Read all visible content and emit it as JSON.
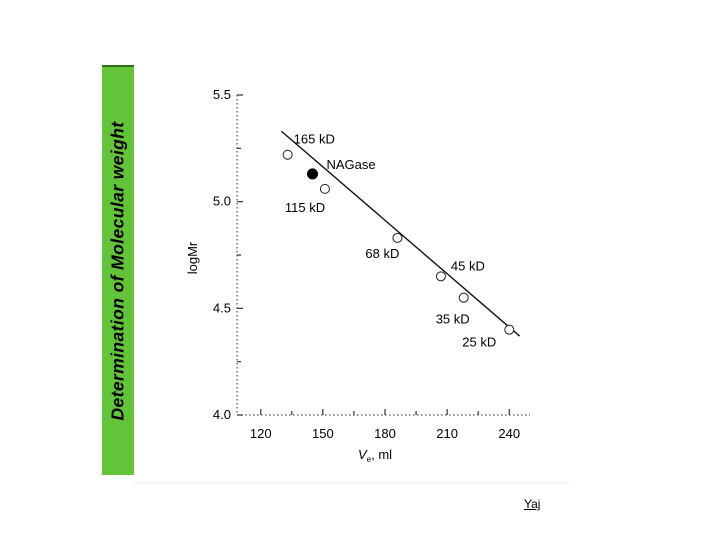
{
  "slide": {
    "side_title": "Determination of Molecular weight",
    "footer_note": "Yaj"
  },
  "chart_data": {
    "type": "scatter",
    "ylabel": "logMr",
    "xlabel_symbol": "V",
    "xlabel_subscript": "e",
    "xlabel_units": ", ml",
    "xlim": [
      110,
      250
    ],
    "ylim": [
      4.0,
      5.5
    ],
    "x_ticks": [
      120,
      150,
      180,
      210,
      240
    ],
    "y_ticks": [
      5.5,
      5.0,
      4.5,
      4.0
    ],
    "y_tick_labels": [
      "5.5",
      "5.0",
      "4.5",
      "4.0"
    ],
    "fit_line": {
      "x": [
        130,
        245
      ],
      "y": [
        5.33,
        4.37
      ]
    },
    "standards": [
      {
        "label": "165 kD",
        "x": 133,
        "y": 5.22
      },
      {
        "label": "115 kD",
        "x": 151,
        "y": 5.06
      },
      {
        "label": "68 kD",
        "x": 186,
        "y": 4.83
      },
      {
        "label": "45 kD",
        "x": 207,
        "y": 4.65
      },
      {
        "label": "35 kD",
        "x": 218,
        "y": 4.55
      },
      {
        "label": "25 kD",
        "x": 240,
        "y": 4.4
      }
    ],
    "sample": {
      "label": "NAGase",
      "x": 145,
      "y": 5.13
    }
  }
}
